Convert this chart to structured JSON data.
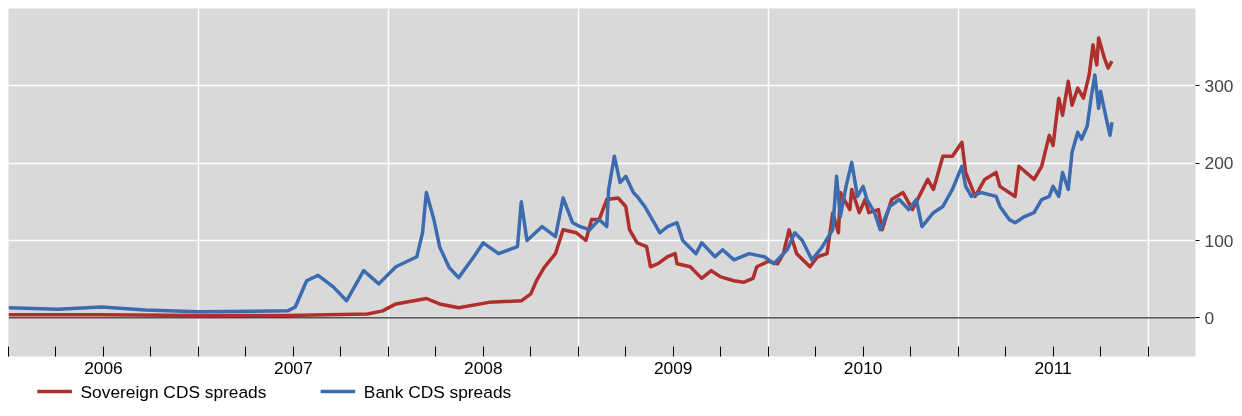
{
  "chart_data": {
    "type": "line",
    "xlim": [
      2006,
      2012.25
    ],
    "ylim": [
      -50,
      400
    ],
    "xticks": [
      {
        "value": 2006,
        "label": null
      },
      {
        "value": 2006.25,
        "label": null
      },
      {
        "value": 2006.5,
        "label": "2006"
      },
      {
        "value": 2006.75,
        "label": null
      },
      {
        "value": 2007,
        "label": null
      },
      {
        "value": 2007.25,
        "label": null
      },
      {
        "value": 2007.5,
        "label": "2007"
      },
      {
        "value": 2007.75,
        "label": null
      },
      {
        "value": 2008,
        "label": null
      },
      {
        "value": 2008.25,
        "label": null
      },
      {
        "value": 2008.5,
        "label": "2008"
      },
      {
        "value": 2008.75,
        "label": null
      },
      {
        "value": 2009,
        "label": null
      },
      {
        "value": 2009.25,
        "label": null
      },
      {
        "value": 2009.5,
        "label": "2009"
      },
      {
        "value": 2009.75,
        "label": null
      },
      {
        "value": 2010,
        "label": null
      },
      {
        "value": 2010.25,
        "label": null
      },
      {
        "value": 2010.5,
        "label": "2010"
      },
      {
        "value": 2010.75,
        "label": null
      },
      {
        "value": 2011,
        "label": null
      },
      {
        "value": 2011.25,
        "label": null
      },
      {
        "value": 2011.5,
        "label": "2011"
      },
      {
        "value": 2011.75,
        "label": null
      },
      {
        "value": 2012,
        "label": null
      }
    ],
    "yticks": [
      0,
      100,
      200,
      300
    ],
    "grid": true,
    "legend": "bottom",
    "ref_lines": [
      {
        "axis": "y",
        "value": 0,
        "color": "#000000"
      }
    ],
    "series": [
      {
        "name": "Sovereign CDS spreads",
        "color": "#ae2f2c",
        "x": [
          2006.0,
          2006.49,
          2007.0,
          2007.47,
          2007.89,
          2007.97,
          2008.04,
          2008.2,
          2008.27,
          2008.37,
          2008.53,
          2008.7,
          2008.75,
          2008.78,
          2008.82,
          2008.88,
          2008.92,
          2008.99,
          2009.04,
          2009.07,
          2009.11,
          2009.15,
          2009.21,
          2009.25,
          2009.27,
          2009.31,
          2009.36,
          2009.38,
          2009.42,
          2009.47,
          2009.51,
          2009.52,
          2009.59,
          2009.65,
          2009.7,
          2009.75,
          2009.82,
          2009.87,
          2009.92,
          2009.94,
          2010.0,
          2010.05,
          2010.08,
          2010.11,
          2010.15,
          2010.22,
          2010.26,
          2010.31,
          2010.34,
          2010.37,
          2010.38,
          2010.43,
          2010.44,
          2010.48,
          2010.51,
          2010.53,
          2010.58,
          2010.6,
          2010.65,
          2010.71,
          2010.76,
          2010.84,
          2010.87,
          2010.92,
          2010.97,
          2011.02,
          2011.04,
          2011.09,
          2011.14,
          2011.2,
          2011.22,
          2011.3,
          2011.32,
          2011.4,
          2011.44,
          2011.48,
          2011.5,
          2011.53,
          2011.55,
          2011.58,
          2011.6,
          2011.63,
          2011.66,
          2011.69,
          2011.71,
          2011.73,
          2011.74,
          2011.77,
          2011.79,
          2011.81
        ],
        "values": [
          4,
          4,
          3,
          3,
          5,
          9,
          18,
          25,
          18,
          13,
          20,
          22,
          31,
          48,
          65,
          83,
          114,
          110,
          100,
          127,
          127,
          153,
          155,
          144,
          114,
          97,
          92,
          66,
          70,
          79,
          83,
          70,
          66,
          51,
          61,
          53,
          48,
          46,
          51,
          66,
          73,
          70,
          83,
          114,
          83,
          66,
          79,
          83,
          136,
          110,
          162,
          140,
          166,
          136,
          153,
          136,
          140,
          114,
          153,
          162,
          140,
          179,
          166,
          209,
          209,
          227,
          188,
          157,
          179,
          188,
          170,
          157,
          196,
          179,
          196,
          236,
          223,
          284,
          262,
          306,
          275,
          297,
          284,
          314,
          353,
          327,
          362,
          336,
          323,
          332
        ]
      },
      {
        "name": "Bank CDS spreads",
        "color": "#3d6bb0",
        "x": [
          2006.0,
          2006.26,
          2006.49,
          2006.72,
          2007.0,
          2007.47,
          2007.51,
          2007.57,
          2007.63,
          2007.71,
          2007.78,
          2007.87,
          2007.95,
          2008.04,
          2008.15,
          2008.18,
          2008.2,
          2008.24,
          2008.27,
          2008.32,
          2008.37,
          2008.45,
          2008.5,
          2008.58,
          2008.68,
          2008.7,
          2008.73,
          2008.81,
          2008.88,
          2008.92,
          2008.97,
          2009.01,
          2009.06,
          2009.11,
          2009.15,
          2009.16,
          2009.19,
          2009.22,
          2009.25,
          2009.29,
          2009.31,
          2009.35,
          2009.39,
          2009.43,
          2009.47,
          2009.52,
          2009.55,
          2009.62,
          2009.65,
          2009.72,
          2009.76,
          2009.82,
          2009.9,
          2009.98,
          2010.03,
          2010.1,
          2010.14,
          2010.18,
          2010.23,
          2010.28,
          2010.34,
          2010.36,
          2010.38,
          2010.41,
          2010.44,
          2010.47,
          2010.5,
          2010.52,
          2010.56,
          2010.59,
          2010.64,
          2010.69,
          2010.74,
          2010.78,
          2010.81,
          2010.87,
          2010.92,
          2010.97,
          2011.02,
          2011.04,
          2011.07,
          2011.12,
          2011.2,
          2011.22,
          2011.27,
          2011.3,
          2011.35,
          2011.4,
          2011.44,
          2011.48,
          2011.5,
          2011.53,
          2011.55,
          2011.58,
          2011.6,
          2011.63,
          2011.65,
          2011.68,
          2011.7,
          2011.72,
          2011.74,
          2011.75,
          2011.78,
          2011.8,
          2011.81
        ],
        "values": [
          13,
          11,
          14,
          10,
          8,
          9,
          14,
          48,
          55,
          40,
          22,
          61,
          44,
          66,
          79,
          110,
          162,
          127,
          92,
          65,
          52,
          79,
          97,
          83,
          92,
          150,
          100,
          118,
          105,
          155,
          123,
          118,
          114,
          127,
          118,
          166,
          209,
          175,
          183,
          162,
          157,
          144,
          127,
          110,
          118,
          123,
          100,
          83,
          97,
          79,
          88,
          75,
          83,
          79,
          70,
          88,
          110,
          100,
          75,
          90,
          114,
          183,
          131,
          170,
          201,
          157,
          170,
          153,
          136,
          114,
          144,
          153,
          140,
          153,
          118,
          136,
          144,
          166,
          196,
          170,
          157,
          162,
          157,
          144,
          127,
          123,
          131,
          136,
          153,
          157,
          170,
          157,
          188,
          166,
          214,
          240,
          231,
          248,
          284,
          314,
          271,
          293,
          258,
          236,
          253
        ]
      }
    ]
  }
}
